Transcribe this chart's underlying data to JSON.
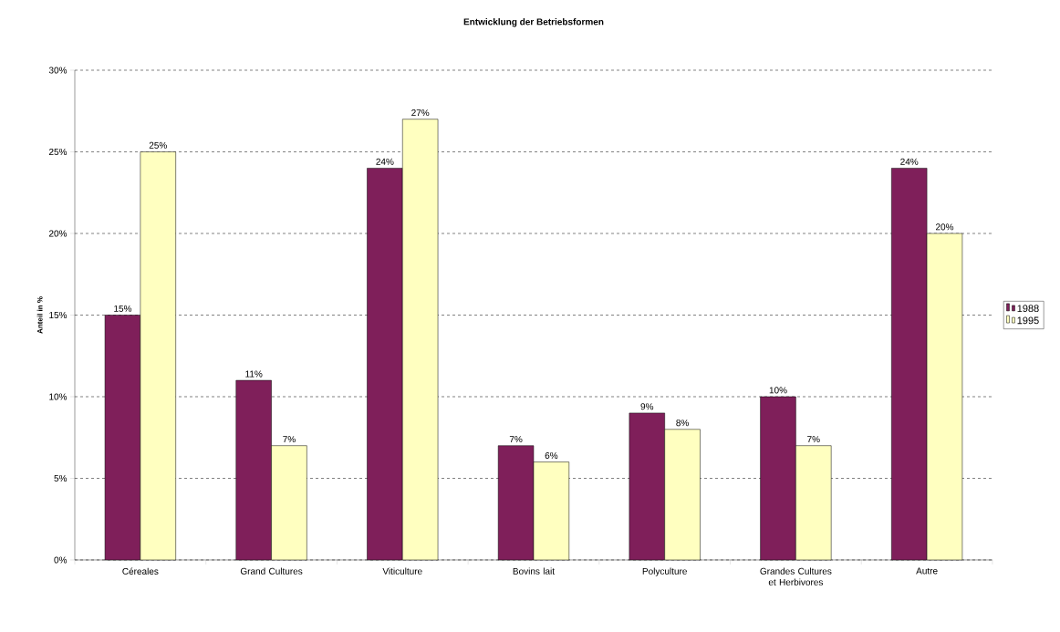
{
  "chart_data": {
    "type": "bar",
    "title": "Entwicklung der Betriebsformen",
    "ylabel": "Anteil in %",
    "categories": [
      "Céreales",
      "Grand Cultures",
      "Viticulture",
      "Bovins lait",
      "Polyculture",
      "Grandes Cultures et Herbivores",
      "Autre"
    ],
    "series": [
      {
        "name": "1988",
        "color": "#7f1f5a",
        "values": [
          15,
          11,
          24,
          7,
          9,
          10,
          24
        ],
        "value_labels": [
          "15%",
          "11%",
          "24%",
          "7%",
          "9%",
          "10%",
          "24%"
        ]
      },
      {
        "name": "1995",
        "color": "#ffffc0",
        "values": [
          25,
          7,
          27,
          6,
          8,
          7,
          20
        ],
        "value_labels": [
          "25%",
          "7%",
          "27%",
          "6%",
          "8%",
          "7%",
          "20%"
        ]
      }
    ],
    "ylim": [
      0,
      30
    ],
    "yticks": [
      {
        "value": 0,
        "label": "0%"
      },
      {
        "value": 5,
        "label": "5%"
      },
      {
        "value": 10,
        "label": "10%"
      },
      {
        "value": 15,
        "label": "15%"
      },
      {
        "value": 20,
        "label": "20%"
      },
      {
        "value": 25,
        "label": "25%"
      },
      {
        "value": 30,
        "label": "30%"
      }
    ],
    "grid": "y",
    "legend": "right"
  }
}
